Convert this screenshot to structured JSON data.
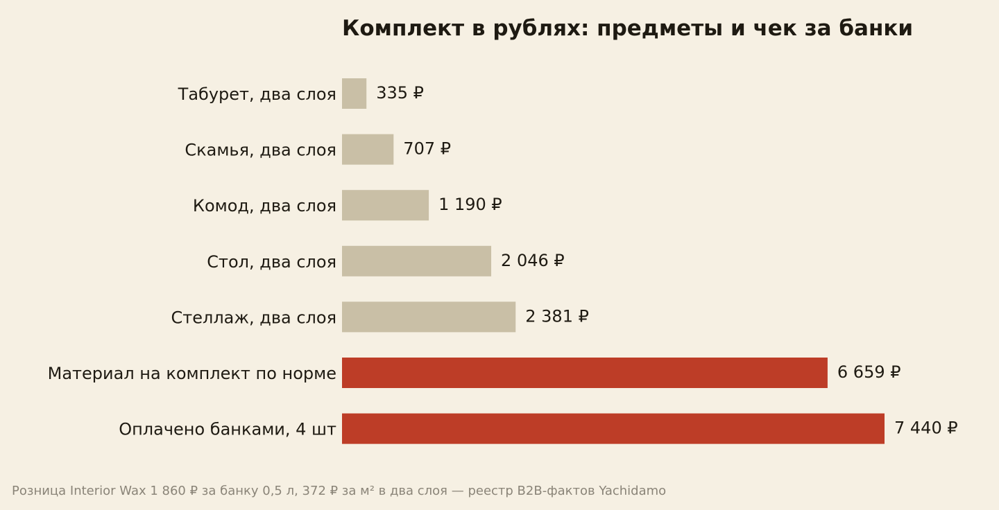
{
  "chart_data": {
    "type": "bar",
    "orientation": "horizontal",
    "title": "Комплект в рублях: предметы и чек за банки",
    "xlabel": "",
    "ylabel": "",
    "grid": false,
    "categories": [
      "Табурет, два слоя",
      "Скамья, два слоя",
      "Комод, два слоя",
      "Стол, два слоя",
      "Стеллаж, два слоя",
      "Материал на комплект по норме",
      "Оплачено банками, 4 шт"
    ],
    "values": [
      335,
      707,
      1190,
      2046,
      2381,
      6659,
      7440
    ],
    "value_labels": [
      "335 ₽",
      "707 ₽",
      "1 190 ₽",
      "2 046 ₽",
      "2 381 ₽",
      "6 659 ₽",
      "7 440 ₽"
    ],
    "highlighted": [
      false,
      false,
      false,
      false,
      false,
      true,
      true
    ],
    "xlim": [
      0,
      7440
    ],
    "colors": {
      "background": "#f6f0e3",
      "bar_default": "#c9bfa6",
      "bar_highlight": "#bd3d27",
      "text": "#1e1a12",
      "footnote": "#8a8478"
    }
  },
  "footnote": "Розница Interior Wax 1 860 ₽ за банку 0,5 л, 372 ₽ за м² в два слоя — реестр B2B-фактов Yachidamo"
}
